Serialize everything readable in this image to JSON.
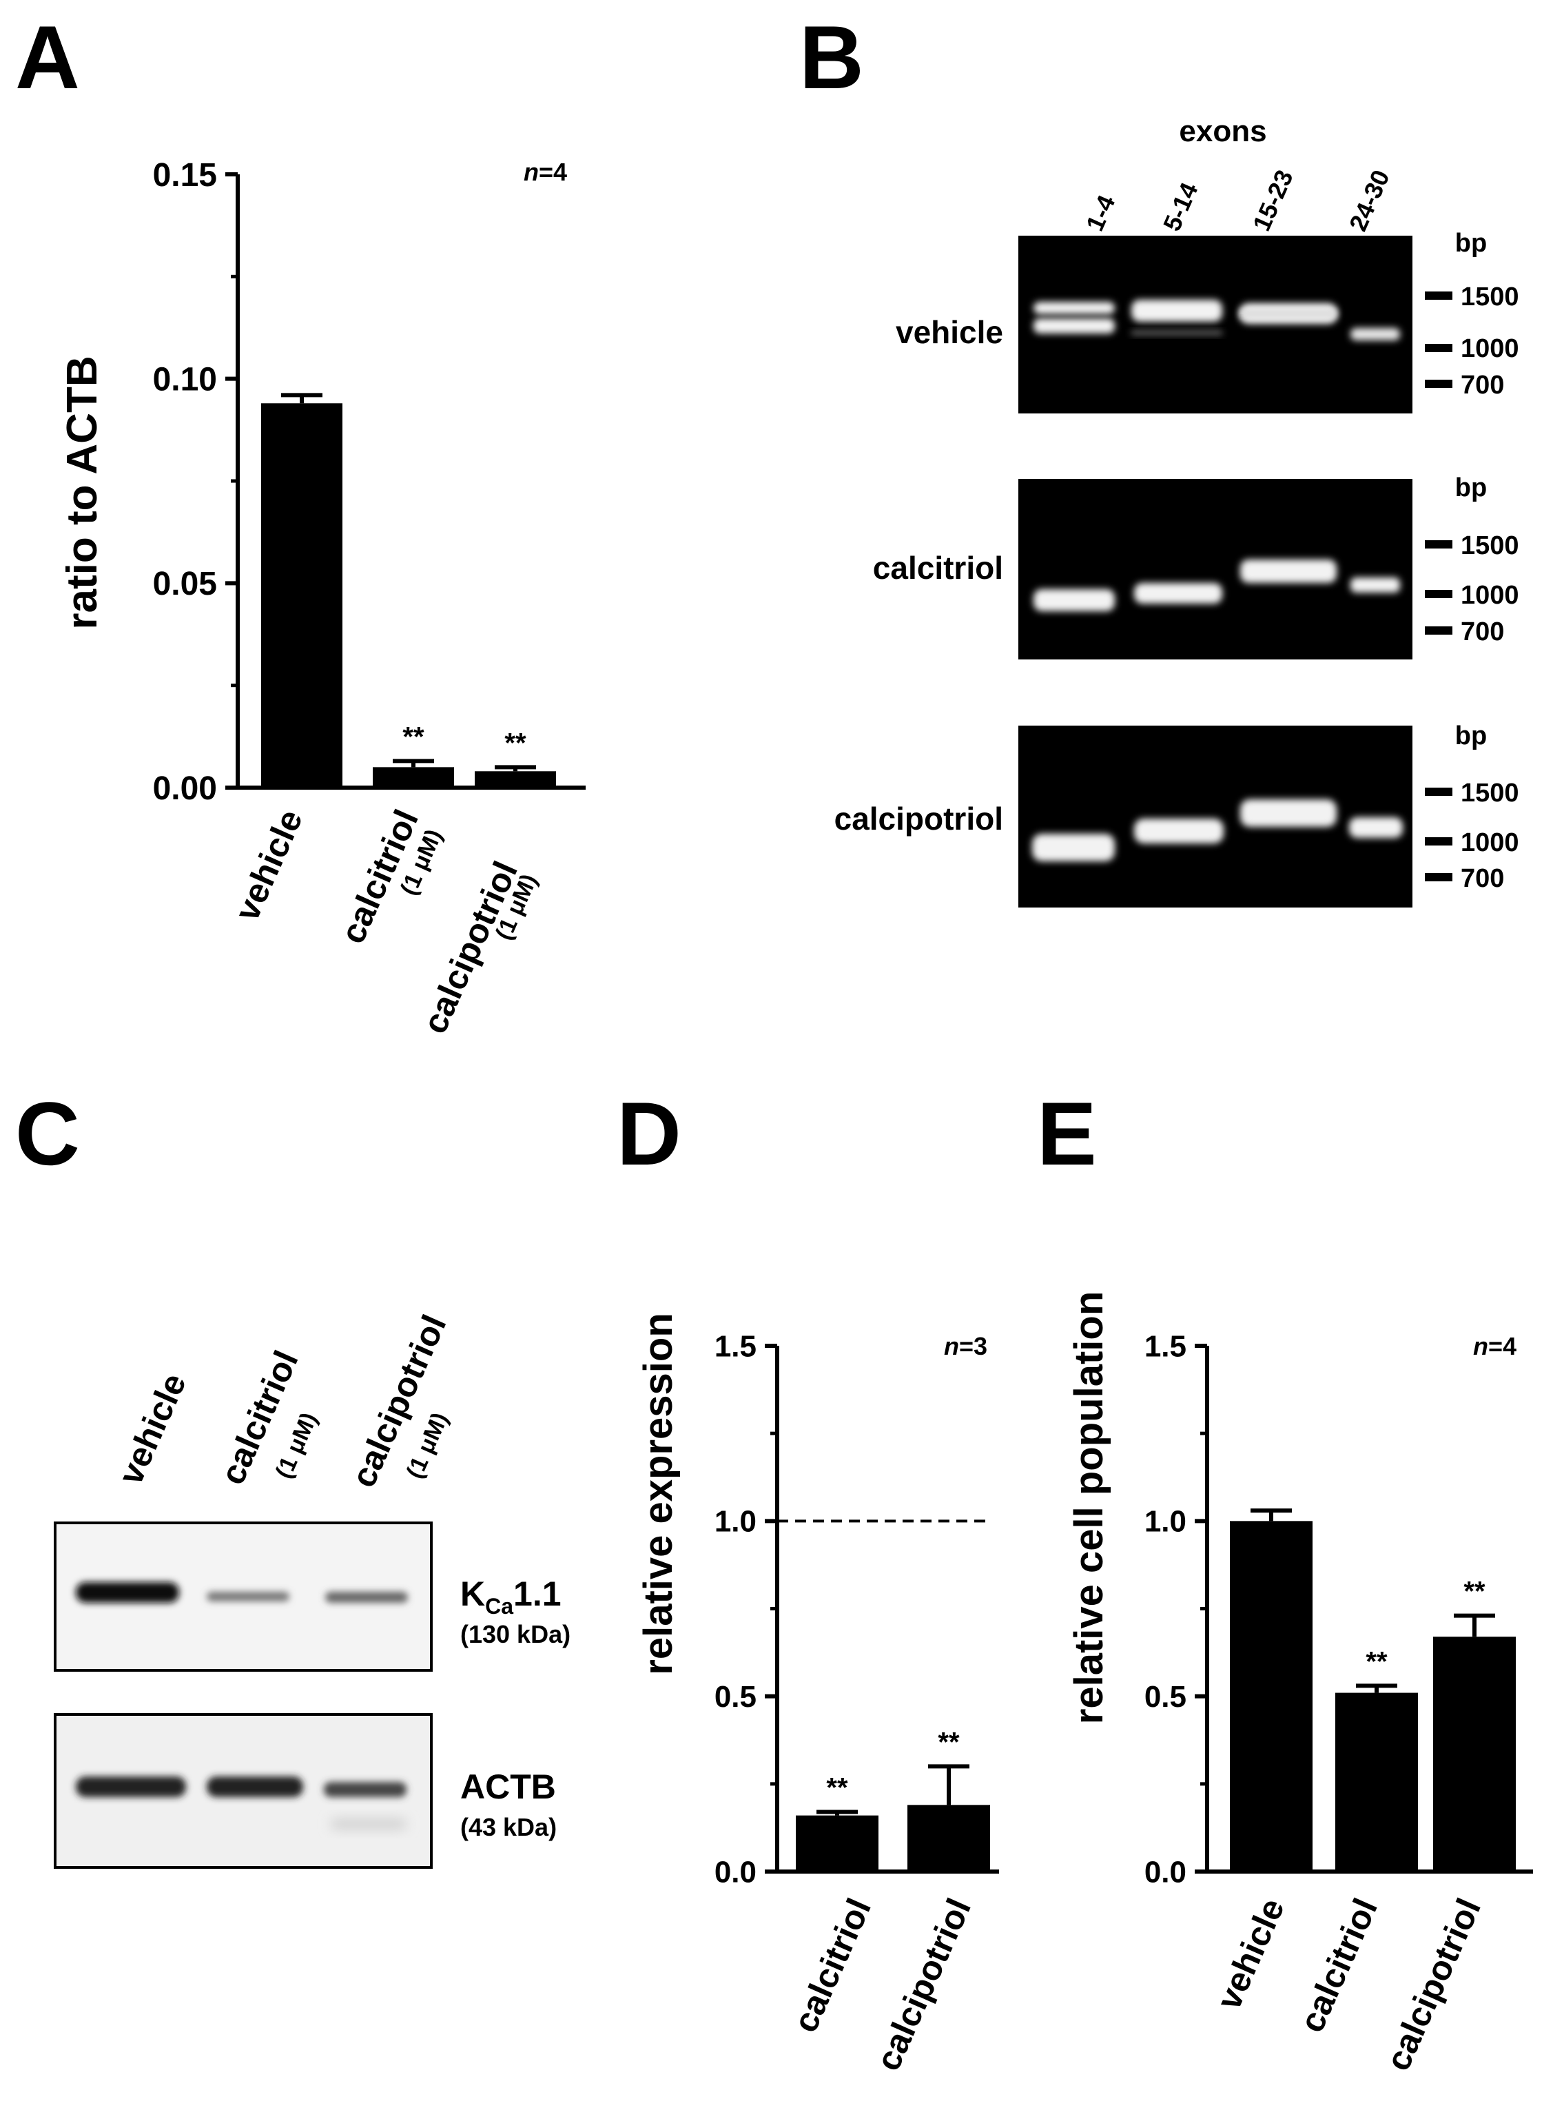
{
  "panel_letters": [
    "A",
    "B",
    "C",
    "D",
    "E"
  ],
  "chart_data": [
    {
      "panel": "A",
      "type": "bar",
      "categories": [
        "vehicle",
        "calcitriol",
        "calcipotriol"
      ],
      "category_sublabels": [
        "",
        "(1 μM)",
        "(1 μM)"
      ],
      "values": [
        0.094,
        0.005,
        0.004
      ],
      "errors": [
        0.002,
        0.0015,
        0.001
      ],
      "significance": [
        "",
        "**",
        "**"
      ],
      "ylabel": "ratio to ACTB",
      "ylim": [
        0,
        0.15
      ],
      "yticks": [
        "0.00",
        "0.05",
        "0.10",
        "0.15"
      ],
      "n_prefix": "n",
      "n_suffix": "=4"
    },
    {
      "panel": "D",
      "type": "bar",
      "categories": [
        "calcitriol",
        "calcipotriol"
      ],
      "values": [
        0.16,
        0.19
      ],
      "errors": [
        0.01,
        0.11
      ],
      "significance": [
        "**",
        "**"
      ],
      "ylabel": "relative expression",
      "ylim": [
        0,
        1.5
      ],
      "yticks": [
        "0.0",
        "0.5",
        "1.0",
        "1.5"
      ],
      "reference_line": 1.0,
      "n_prefix": "n",
      "n_suffix": "=3"
    },
    {
      "panel": "E",
      "type": "bar",
      "categories": [
        "vehicle",
        "calcitriol",
        "calcipotriol"
      ],
      "values": [
        1.0,
        0.51,
        0.67
      ],
      "errors": [
        0.03,
        0.02,
        0.06
      ],
      "significance": [
        "",
        "**",
        "**"
      ],
      "ylabel": "relative cell population",
      "ylim": [
        0,
        1.5
      ],
      "yticks": [
        "0.0",
        "0.5",
        "1.0",
        "1.5"
      ],
      "n_prefix": "n",
      "n_suffix": "=4"
    }
  ],
  "gel": {
    "header": "exons",
    "lanes": [
      "1-4",
      "5-14",
      "15-23",
      "24-30"
    ],
    "conditions": [
      "vehicle",
      "calcitriol",
      "calcipotriol"
    ],
    "unit": "bp",
    "markers": [
      "1500",
      "1000",
      "700"
    ]
  },
  "blot": {
    "lanes": [
      "vehicle",
      "calcitriol",
      "calcipotriol"
    ],
    "lane_sublabels": [
      "",
      "(1 μM)",
      "(1 μM)"
    ],
    "rows": [
      {
        "label_main": "K",
        "label_sub": "Ca",
        "label_rest": "1.1",
        "size": "(130 kDa)"
      },
      {
        "label_main": "ACTB",
        "label_sub": "",
        "label_rest": "",
        "size": "(43 kDa)"
      }
    ]
  }
}
